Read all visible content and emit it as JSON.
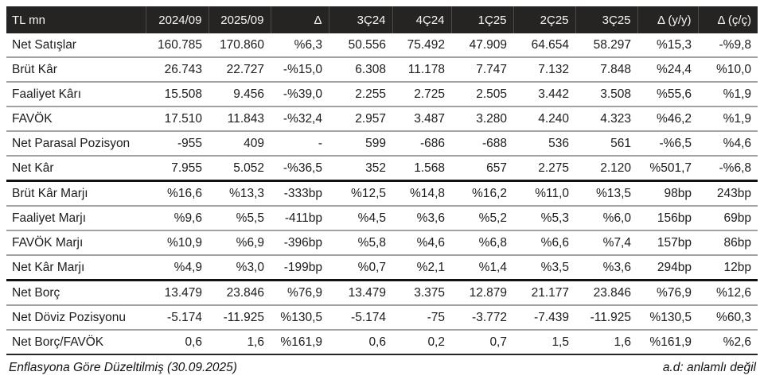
{
  "chart_data": {
    "type": "table",
    "unit_label": "TL mn",
    "columns": [
      "TL mn",
      "2024/09",
      "2025/09",
      "Δ",
      "3Ç24",
      "4Ç24",
      "1Ç25",
      "2Ç25",
      "3Ç25",
      "Δ (y/y)",
      "Δ (ç/ç)"
    ],
    "rows": [
      {
        "label": "Net Satışlar",
        "values": [
          "160.785",
          "170.860",
          "%6,3",
          "50.556",
          "75.492",
          "47.909",
          "64.654",
          "58.297",
          "%15,3",
          "-%9,8"
        ],
        "section_end": false
      },
      {
        "label": "Brüt Kâr",
        "values": [
          "26.743",
          "22.727",
          "-%15,0",
          "6.308",
          "11.178",
          "7.747",
          "7.132",
          "7.848",
          "%24,4",
          "%10,0"
        ],
        "section_end": false
      },
      {
        "label": "Faaliyet Kârı",
        "values": [
          "15.508",
          "9.456",
          "-%39,0",
          "2.255",
          "2.725",
          "2.505",
          "3.442",
          "3.508",
          "%55,6",
          "%1,9"
        ],
        "section_end": false
      },
      {
        "label": "FAVÖK",
        "values": [
          "17.510",
          "11.843",
          "-%32,4",
          "2.957",
          "3.487",
          "3.280",
          "4.240",
          "4.323",
          "%46,2",
          "%1,9"
        ],
        "section_end": false
      },
      {
        "label": "Net Parasal Pozisyon",
        "values": [
          "-955",
          "409",
          "-",
          "599",
          "-686",
          "-688",
          "536",
          "561",
          "-%6,5",
          "%4,6"
        ],
        "section_end": false
      },
      {
        "label": "Net Kâr",
        "values": [
          "7.955",
          "5.052",
          "-%36,5",
          "352",
          "1.568",
          "657",
          "2.275",
          "2.120",
          "%501,7",
          "-%6,8"
        ],
        "section_end": true
      },
      {
        "label": "Brüt Kâr Marjı",
        "values": [
          "%16,6",
          "%13,3",
          "-333bp",
          "%12,5",
          "%14,8",
          "%16,2",
          "%11,0",
          "%13,5",
          "98bp",
          "243bp"
        ],
        "section_end": false
      },
      {
        "label": "Faaliyet Marjı",
        "values": [
          "%9,6",
          "%5,5",
          "-411bp",
          "%4,5",
          "%3,6",
          "%5,2",
          "%5,3",
          "%6,0",
          "156bp",
          "69bp"
        ],
        "section_end": false
      },
      {
        "label": "FAVÖK Marjı",
        "values": [
          "%10,9",
          "%6,9",
          "-396bp",
          "%5,8",
          "%4,6",
          "%6,8",
          "%6,6",
          "%7,4",
          "157bp",
          "86bp"
        ],
        "section_end": false
      },
      {
        "label": "Net Kâr Marjı",
        "values": [
          "%4,9",
          "%3,0",
          "-199bp",
          "%0,7",
          "%2,1",
          "%1,4",
          "%3,5",
          "%3,6",
          "294bp",
          "12bp"
        ],
        "section_end": true
      },
      {
        "label": "Net Borç",
        "values": [
          "13.479",
          "23.846",
          "%76,9",
          "13.479",
          "3.375",
          "12.879",
          "21.177",
          "23.846",
          "%76,9",
          "%12,6"
        ],
        "section_end": false
      },
      {
        "label": "Net Döviz Pozisyonu",
        "values": [
          "-5.174",
          "-11.925",
          "%130,5",
          "-5.174",
          "-75",
          "-3.772",
          "-7.439",
          "-11.925",
          "%130,5",
          "%60,3"
        ],
        "section_end": false
      },
      {
        "label": "Net Borç/FAVÖK",
        "values": [
          "0,6",
          "1,6",
          "%161,9",
          "0,6",
          "0,2",
          "0,7",
          "1,5",
          "1,6",
          "%161,9",
          "%2,6"
        ],
        "section_end": false
      }
    ]
  },
  "footer": {
    "left": "Enflasyona Göre Düzeltilmiş (30.09.2025)",
    "right": "a.d: anlamlı değil"
  },
  "colors": {
    "header_bg": "#262422",
    "header_text": "#f7f7f7",
    "body_text": "#1c1c1c",
    "row_separator": "#a2a2a2",
    "section_border": "#121212"
  }
}
